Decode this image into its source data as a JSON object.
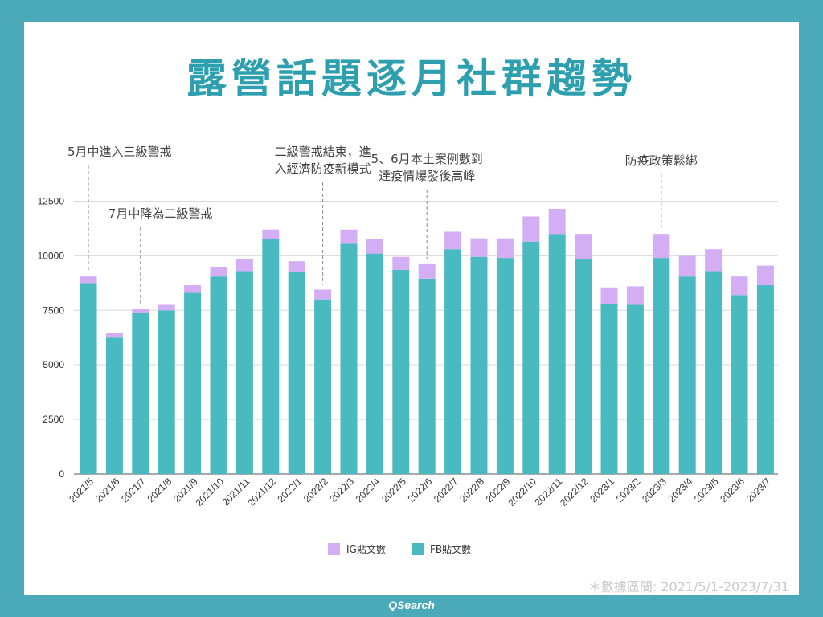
{
  "title": "露營話題逐月社群趨勢",
  "chart_data": {
    "type": "bar",
    "stacked": true,
    "categories": [
      "2021/5",
      "2021/6",
      "2021/7",
      "2021/8",
      "2021/9",
      "2021/10",
      "2021/11",
      "2021/12",
      "2022/1",
      "2022/2",
      "2022/3",
      "2022/4",
      "2022/5",
      "2022/6",
      "2022/7",
      "2022/8",
      "2022/9",
      "2022/10",
      "2022/11",
      "2022/12",
      "2023/1",
      "2023/2",
      "2023/3",
      "2023/4",
      "2023/5",
      "2023/6",
      "2023/7"
    ],
    "series": [
      {
        "name": "FB貼文數",
        "color": "#4abac1",
        "values": [
          8750,
          6250,
          7400,
          7500,
          8300,
          9050,
          9300,
          10750,
          9250,
          8000,
          10550,
          10100,
          9350,
          8950,
          10300,
          9950,
          9900,
          10650,
          11000,
          9850,
          7800,
          7750,
          9900,
          9050,
          9300,
          8200,
          8650
        ]
      },
      {
        "name": "IG貼文數",
        "color": "#d4aef5",
        "values": [
          300,
          200,
          150,
          250,
          350,
          450,
          550,
          450,
          500,
          450,
          650,
          650,
          600,
          700,
          800,
          850,
          900,
          1150,
          1150,
          1150,
          750,
          850,
          1100,
          950,
          1000,
          850,
          900
        ]
      }
    ],
    "y_ticks": [
      0,
      2500,
      5000,
      7500,
      10000,
      12500
    ],
    "ylim": [
      0,
      13400
    ],
    "legend_position": "bottom",
    "annotations": [
      {
        "index": 0,
        "lines": [
          "5月中進入三級警戒"
        ]
      },
      {
        "index": 2,
        "lines": [
          "7月中降為二級警戒"
        ]
      },
      {
        "index": 9,
        "lines": [
          "二級警戒結束，進",
          "入經濟防疫新模式"
        ]
      },
      {
        "index": 13,
        "lines": [
          "5、6月本土案例數到",
          "達疫情爆發後高峰"
        ]
      },
      {
        "index": 22,
        "lines": [
          "防疫政策鬆綁"
        ]
      }
    ]
  },
  "legend": {
    "ig_label": "IG貼文數",
    "fb_label": "FB貼文數"
  },
  "note": "＊數據區間: 2021/5/1-2023/7/31",
  "footer": "QSearch"
}
